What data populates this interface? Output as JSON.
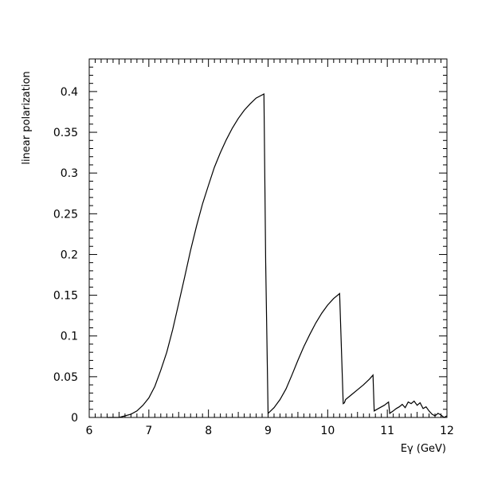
{
  "chart_data": {
    "type": "line",
    "title": "",
    "xlabel": "Eγ (GeV)",
    "ylabel": "linear polarization",
    "xlim": [
      6,
      12
    ],
    "ylim": [
      0,
      0.44
    ],
    "grid": false,
    "xticks": [
      6,
      7,
      8,
      9,
      10,
      11,
      12
    ],
    "xtick_labels": [
      "6",
      "7",
      "8",
      "9",
      "10",
      "11",
      "12"
    ],
    "yticks": [
      0,
      0.05,
      0.1,
      0.15,
      0.2,
      0.25,
      0.3,
      0.35,
      0.4
    ],
    "ytick_labels": [
      "0",
      "0.05",
      "0.1",
      "0.15",
      "0.2",
      "0.25",
      "0.3",
      "0.35",
      "0.4"
    ],
    "series": [
      {
        "x": [
          6.3,
          6.5,
          6.6,
          6.7,
          6.8,
          6.9,
          7.0,
          7.1,
          7.2,
          7.3,
          7.4,
          7.5,
          7.6,
          7.7,
          7.8,
          7.9,
          8.0,
          8.1,
          8.2,
          8.3,
          8.4,
          8.5,
          8.6,
          8.7,
          8.8,
          8.93,
          8.96,
          9.0,
          9.1,
          9.2,
          9.3,
          9.4,
          9.5,
          9.6,
          9.7,
          9.8,
          9.9,
          10.0,
          10.1,
          10.2,
          10.26,
          10.28,
          10.3,
          10.4,
          10.5,
          10.6,
          10.7,
          10.76,
          10.78,
          10.85,
          10.95,
          11.02,
          11.04,
          11.1,
          11.15,
          11.2,
          11.25,
          11.3,
          11.35,
          11.4,
          11.45,
          11.5,
          11.55,
          11.6,
          11.65,
          11.7,
          11.75,
          11.8,
          11.85,
          11.9,
          11.95,
          12.0
        ],
        "y": [
          0.0,
          0.0,
          0.002,
          0.004,
          0.008,
          0.015,
          0.024,
          0.038,
          0.058,
          0.08,
          0.108,
          0.14,
          0.172,
          0.205,
          0.235,
          0.262,
          0.285,
          0.307,
          0.325,
          0.341,
          0.355,
          0.367,
          0.377,
          0.385,
          0.392,
          0.397,
          0.19,
          0.005,
          0.012,
          0.022,
          0.035,
          0.052,
          0.07,
          0.087,
          0.102,
          0.116,
          0.128,
          0.138,
          0.146,
          0.152,
          0.017,
          0.018,
          0.022,
          0.028,
          0.034,
          0.04,
          0.047,
          0.052,
          0.008,
          0.011,
          0.015,
          0.019,
          0.005,
          0.008,
          0.011,
          0.013,
          0.016,
          0.012,
          0.019,
          0.017,
          0.02,
          0.015,
          0.018,
          0.011,
          0.013,
          0.008,
          0.004,
          0.002,
          0.005,
          0.003,
          0.0,
          0.002
        ]
      }
    ]
  }
}
